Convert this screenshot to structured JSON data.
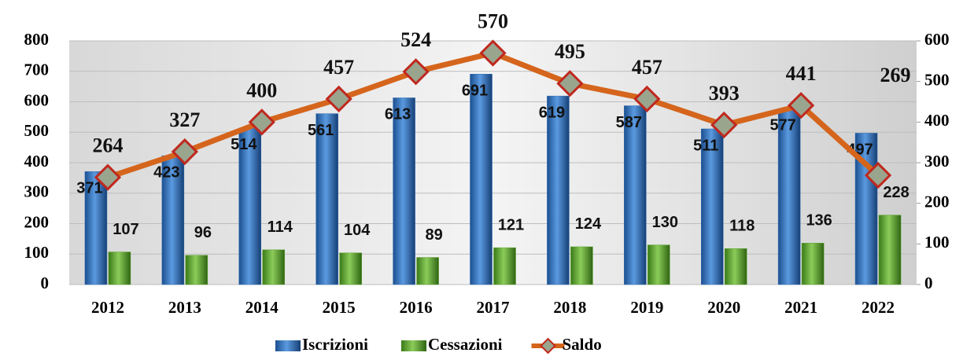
{
  "chart_data": {
    "type": "bar-line",
    "categories": [
      "2012",
      "2013",
      "2014",
      "2015",
      "2016",
      "2017",
      "2018",
      "2019",
      "2020",
      "2021",
      "2022"
    ],
    "series": [
      {
        "name": "Iscrizioni",
        "color": "#2e6db4",
        "type": "bar",
        "values": [
          371,
          423,
          514,
          561,
          613,
          691,
          619,
          587,
          511,
          577,
          497
        ]
      },
      {
        "name": "Cessazioni",
        "color": "#5aa02c",
        "type": "bar",
        "values": [
          107,
          96,
          114,
          104,
          89,
          121,
          124,
          130,
          118,
          136,
          228
        ]
      },
      {
        "name": "Saldo",
        "color": "#d5651c",
        "type": "line",
        "axis": "y2",
        "values": [
          264,
          327,
          400,
          457,
          524,
          570,
          495,
          457,
          393,
          441,
          269
        ]
      }
    ],
    "ylim": [
      0,
      800
    ],
    "yticks": [
      0,
      100,
      200,
      300,
      400,
      500,
      600,
      700,
      800
    ],
    "y2lim": [
      0,
      600
    ],
    "y2ticks": [
      0,
      100,
      200,
      300,
      400,
      500,
      600
    ],
    "legend": "bottom"
  }
}
